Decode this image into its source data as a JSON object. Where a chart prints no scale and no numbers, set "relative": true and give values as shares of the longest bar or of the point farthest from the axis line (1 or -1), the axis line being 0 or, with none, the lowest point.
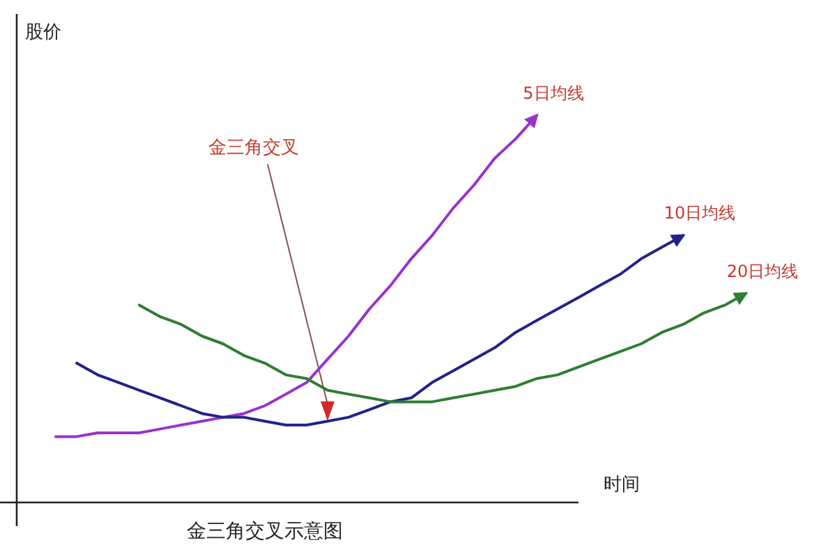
{
  "chart_data": {
    "type": "line",
    "title": "金三角交叉示意图",
    "xlabel": "时间",
    "ylabel": "股价",
    "relative": true,
    "legend": false,
    "marker": "none",
    "line_style": "solid",
    "annotations": [
      "金三角交叉"
    ],
    "categories": [
      null,
      null,
      null,
      null,
      null,
      null,
      null,
      null,
      null,
      null,
      null,
      null,
      null,
      null,
      null,
      null,
      null,
      null,
      null,
      null,
      null,
      null,
      null,
      null,
      null,
      null,
      null,
      null,
      null,
      null,
      null,
      null,
      null,
      null
    ],
    "series": [
      {
        "name": "5日均线",
        "color": "#9933cc",
        "values": [
          0.17,
          0.17,
          0.18,
          0.18,
          0.18,
          0.19,
          0.2,
          0.21,
          0.22,
          0.23,
          0.25,
          0.28,
          0.31,
          0.37,
          0.43,
          0.5,
          0.56,
          0.63,
          0.69,
          0.76,
          0.82,
          0.89,
          0.94,
          1.0,
          null,
          null,
          null,
          null,
          null,
          null,
          null,
          null,
          null,
          null
        ]
      },
      {
        "name": "10日均线",
        "color": "#22228a",
        "values": [
          null,
          0.36,
          0.33,
          0.31,
          0.29,
          0.27,
          0.25,
          0.23,
          0.22,
          0.22,
          0.21,
          0.2,
          0.2,
          0.21,
          0.22,
          0.24,
          0.26,
          0.27,
          0.31,
          0.34,
          0.37,
          0.4,
          0.44,
          0.47,
          0.5,
          0.53,
          0.56,
          0.59,
          0.63,
          0.66,
          0.69,
          null,
          null,
          null
        ]
      },
      {
        "name": "20日均线",
        "color": "#2e7d32",
        "values": [
          null,
          null,
          null,
          null,
          0.51,
          0.48,
          0.46,
          0.43,
          0.41,
          0.38,
          0.36,
          0.33,
          0.32,
          0.29,
          0.28,
          0.27,
          0.26,
          0.26,
          0.26,
          0.27,
          0.28,
          0.29,
          0.3,
          0.32,
          0.33,
          0.35,
          0.37,
          0.39,
          0.41,
          0.44,
          0.46,
          0.49,
          0.51,
          0.54
        ]
      }
    ]
  }
}
